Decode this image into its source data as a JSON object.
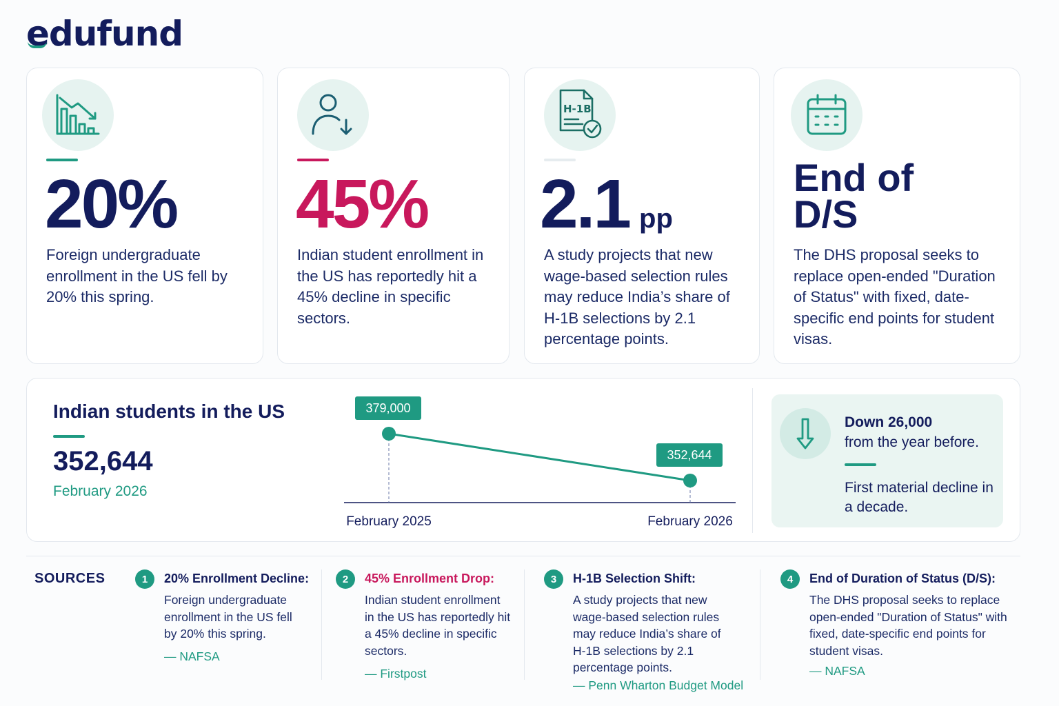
{
  "brand": {
    "logo": "edufund"
  },
  "colors": {
    "teal": "#1f9a82",
    "navy": "#131c5c",
    "pink": "#c8185c"
  },
  "stats": [
    {
      "icon": "declining-bar-chart-icon",
      "value": "20%",
      "description": "Foreign undergraduate enrollment in the US fell by 20% this spring."
    },
    {
      "icon": "person-down-arrow-icon",
      "value": "45%",
      "description": "Indian student enrollment in the US has reportedly hit a 45% decline in specific sectors."
    },
    {
      "icon": "h1b-document-check-icon",
      "icon_label": "H-1B",
      "value": "2.1",
      "unit": "pp",
      "description": "A study projects that new wage-based selection rules may reduce India’s share of H-1B selections by 2.1 percentage points."
    },
    {
      "icon": "calendar-icon",
      "value": "End of\nD/S",
      "description": "The DHS proposal seeks to replace open-ended \"Duration of Status\" with fixed, date-specific end points for student visas."
    }
  ],
  "trend": {
    "title": "Indian students in the US",
    "current_value": "352,644",
    "current_date": "February 2026",
    "callout_main": "Down 26,000",
    "callout_main_rest": "from the year before.",
    "callout_sub": "First material decline in a decade.",
    "callout_icon": "down-arrow-icon"
  },
  "chart_data": {
    "type": "line",
    "x": [
      "February 2025",
      "February 2026"
    ],
    "series": [
      {
        "values": [
          379000,
          352644
        ],
        "labels": [
          "379,000",
          "352,644"
        ]
      }
    ],
    "title": "",
    "xlabel": "",
    "ylabel": "",
    "grid": false
  },
  "sources": {
    "title": "SOURCES",
    "items": [
      {
        "number": "1",
        "heading": "20% Enrollment Decline:",
        "body": "Foreign undergraduate enrollment in the US fell by 20% this spring.",
        "cite": "— NAFSA"
      },
      {
        "number": "2",
        "heading": "45% Enrollment Drop:",
        "body": "Indian student enrollment in the US has reportedly hit a 45% decline in specific sectors.",
        "cite": "— Firstpost"
      },
      {
        "number": "3",
        "heading": "H-1B Selection Shift:",
        "body": "A study projects that new wage-based selection rules may reduce India’s share of H-1B selections by 2.1 percentage points.",
        "cite": "— Penn Wharton Budget Model"
      },
      {
        "number": "4",
        "heading": "End of Duration of Status (D/S):",
        "body": "The DHS proposal seeks to replace open-ended \"Duration of Status\" with fixed, date-specific end points for student visas.",
        "cite": "— NAFSA"
      }
    ]
  }
}
